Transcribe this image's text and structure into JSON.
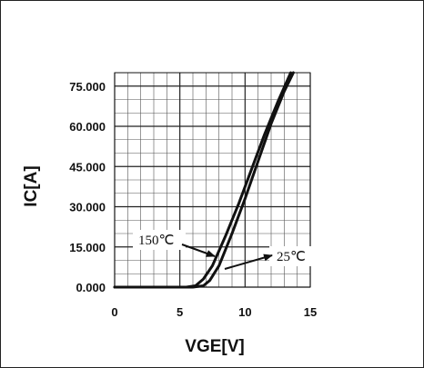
{
  "chart_data": {
    "type": "line",
    "xlabel": "VGE[V]",
    "ylabel": "IC[A]",
    "xlim": [
      0,
      15
    ],
    "ylim": [
      0,
      80
    ],
    "x_ticks": [
      "0",
      "5",
      "10",
      "15"
    ],
    "x_tick_values": [
      0,
      5,
      10,
      15
    ],
    "y_ticks": [
      "0.000",
      "15.000",
      "30.000",
      "45.000",
      "60.000",
      "75.000"
    ],
    "y_tick_values": [
      0,
      15,
      30,
      45,
      60,
      75
    ],
    "grid": true,
    "series": [
      {
        "name": "150℃",
        "x": [
          0,
          5.5,
          6.2,
          6.8,
          7.5,
          8.5,
          9.5,
          10.5,
          11.5,
          12.5,
          13.5
        ],
        "y": [
          0,
          0,
          0.5,
          3,
          8,
          19,
          31,
          44,
          57,
          69,
          80
        ]
      },
      {
        "name": "25℃",
        "x": [
          0,
          6.0,
          6.8,
          7.3,
          8.0,
          9.0,
          10.0,
          11.0,
          12.0,
          13.0,
          13.7
        ],
        "y": [
          0,
          0,
          0.5,
          2.5,
          8,
          20,
          33,
          47,
          61,
          73,
          80
        ]
      }
    ],
    "annotations": [
      {
        "text": "150℃",
        "arrow_to": [
          7.6,
          12
        ]
      },
      {
        "text": "25℃",
        "arrow_to": [
          8.6,
          10
        ]
      }
    ]
  },
  "colors": {
    "line": "#111111",
    "grid": "#555555"
  }
}
